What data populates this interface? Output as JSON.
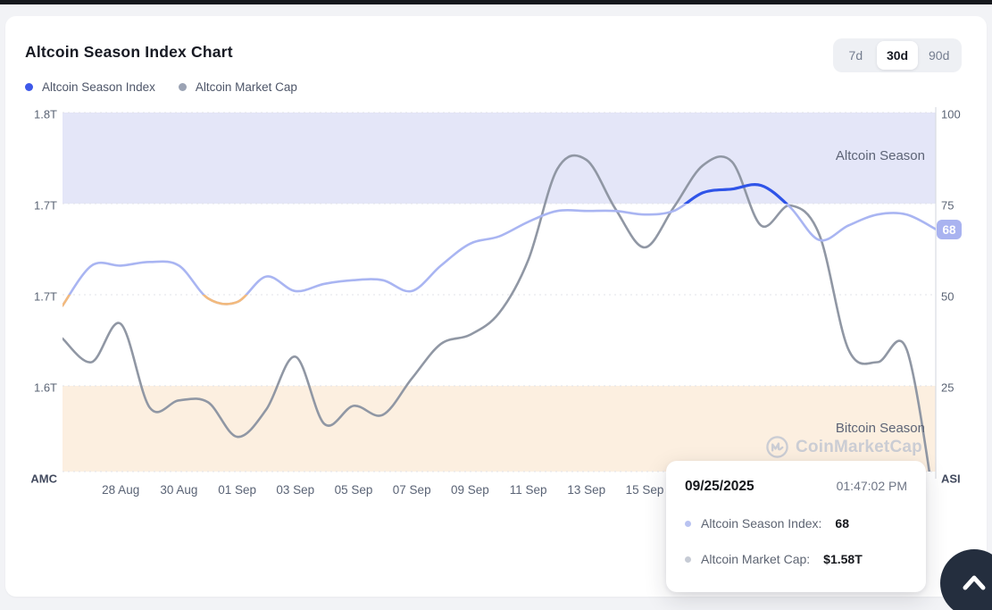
{
  "header": {
    "title": "Altcoin Season Index Chart",
    "range_buttons": [
      {
        "label": "7d",
        "selected": false
      },
      {
        "label": "30d",
        "selected": true
      },
      {
        "label": "90d",
        "selected": false
      }
    ]
  },
  "legend": [
    {
      "label": "Altcoin Season Index",
      "color": "#3e59e9"
    },
    {
      "label": "Altcoin Market Cap",
      "color": "#9ba3b4"
    }
  ],
  "chart_data": {
    "type": "line",
    "title": "Altcoin Season Index Chart",
    "x": [
      "26 Aug",
      "27 Aug",
      "28 Aug",
      "29 Aug",
      "30 Aug",
      "31 Aug",
      "01 Sep",
      "02 Sep",
      "03 Sep",
      "04 Sep",
      "05 Sep",
      "06 Sep",
      "07 Sep",
      "08 Sep",
      "09 Sep",
      "10 Sep",
      "11 Sep",
      "12 Sep",
      "13 Sep",
      "14 Sep",
      "15 Sep",
      "16 Sep",
      "17 Sep",
      "18 Sep",
      "19 Sep",
      "20 Sep",
      "21 Sep",
      "22 Sep",
      "23 Sep",
      "24 Sep",
      "25 Sep"
    ],
    "series": [
      {
        "name": "Altcoin Season Index",
        "axis": "right",
        "color": "#a9b5f2",
        "color_above_75": "#2f54e8",
        "color_below_50": "#f3ba7d",
        "values": [
          47,
          58,
          58,
          59,
          58,
          49,
          48,
          55,
          51,
          53,
          54,
          54,
          51,
          58,
          64,
          66,
          70,
          73,
          73,
          73,
          72,
          73,
          78,
          79,
          80,
          74,
          65,
          69,
          72,
          72,
          68
        ]
      },
      {
        "name": "Altcoin Market Cap",
        "axis": "left",
        "unit": "T",
        "color": "#9097a4",
        "values": [
          1.676,
          1.663,
          1.684,
          1.638,
          1.642,
          1.641,
          1.622,
          1.637,
          1.666,
          1.629,
          1.639,
          1.634,
          1.654,
          1.673,
          1.678,
          1.69,
          1.719,
          1.769,
          1.774,
          1.747,
          1.726,
          1.748,
          1.771,
          1.773,
          1.738,
          1.749,
          1.733,
          1.67,
          1.663,
          1.67,
          1.58
        ]
      }
    ],
    "left_axis": {
      "caption": "AMC",
      "ticks": [
        "1.8T",
        "1.7T",
        "1.7T",
        "1.6T"
      ],
      "top_value": 1.8,
      "step": 0.05
    },
    "right_axis": {
      "caption": "ASI",
      "ticks": [
        "100",
        "75",
        "50",
        "25"
      ],
      "range": [
        0,
        100
      ]
    },
    "x_ticks": [
      {
        "label": "28 Aug",
        "day": 2
      },
      {
        "label": "30 Aug",
        "day": 4
      },
      {
        "label": "01 Sep",
        "day": 6
      },
      {
        "label": "03 Sep",
        "day": 8
      },
      {
        "label": "05 Sep",
        "day": 10
      },
      {
        "label": "07 Sep",
        "day": 12
      },
      {
        "label": "09 Sep",
        "day": 14
      },
      {
        "label": "11 Sep",
        "day": 16
      },
      {
        "label": "13 Sep",
        "day": 18
      },
      {
        "label": "15 Sep",
        "day": 20
      }
    ],
    "zones": [
      {
        "label": "Altcoin Season",
        "range": [
          75,
          100
        ],
        "color": "#e4e6f8"
      },
      {
        "label": "Bitcoin Season",
        "range": [
          0,
          25
        ],
        "color": "#fcefe0"
      }
    ],
    "grid": "dashed-horizontal",
    "legend_position": "top-left",
    "last_value_badge": "68",
    "badge_color": "#a9b3f0"
  },
  "tooltip": {
    "date": "09/25/2025",
    "time": "01:47:02 PM",
    "rows": [
      {
        "label": "Altcoin Season Index:",
        "value": "68",
        "dot_color": "#b9c3f1"
      },
      {
        "label": "Altcoin Market Cap:",
        "value": "$1.58T",
        "dot_color": "#c6cbd5"
      }
    ]
  },
  "watermark": {
    "text": "CoinMarketCap"
  },
  "zone_labels": {
    "altcoin": "Altcoin Season",
    "bitcoin": "Bitcoin Season"
  }
}
